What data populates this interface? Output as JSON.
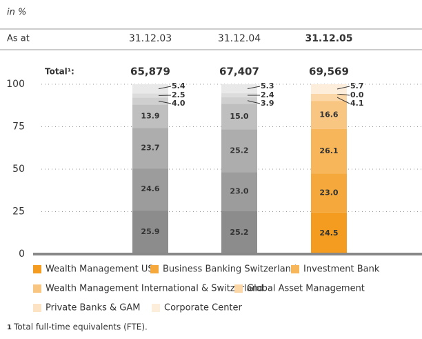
{
  "unit_label": "in %",
  "date_label": "As at",
  "chart_data": {
    "type": "stacked_bar",
    "categories": [
      "31.12.03",
      "31.12.04",
      "31.12.05"
    ],
    "highlight_category": 2,
    "total_label": "Total¹:",
    "totals": {
      "values": [
        65879,
        67407,
        69569
      ],
      "value_labels": [
        "65,879",
        "67,407",
        "69,569"
      ]
    },
    "ylim": [
      0,
      100
    ],
    "yticks": [
      0,
      25,
      50,
      75,
      100
    ],
    "grid": true,
    "series": [
      {
        "name": "Wealth Management US",
        "color": "#f39c1f",
        "gray": "#8c8c8c",
        "values": [
          25.9,
          25.2,
          24.5
        ],
        "value_labels": [
          "25.9",
          "25.2",
          "24.5"
        ]
      },
      {
        "name": "Business Banking Switzerland",
        "color": "#f5a83c",
        "gray": "#9c9c9c",
        "values": [
          24.6,
          23.0,
          23.0
        ],
        "value_labels": [
          "24.6",
          "23.0",
          "23.0"
        ]
      },
      {
        "name": "Investment Bank",
        "color": "#f7b65a",
        "gray": "#adadad",
        "values": [
          23.7,
          25.2,
          26.1
        ],
        "value_labels": [
          "23.7",
          "25.2",
          "26.1"
        ]
      },
      {
        "name": "Wealth Management International & Switzerland",
        "color": "#f9c682",
        "gray": "#bfbfbf",
        "values": [
          13.9,
          15.0,
          16.6
        ],
        "value_labels": [
          "13.9",
          "15.0",
          "16.6"
        ]
      },
      {
        "name": "Global Asset Management",
        "color": "#fbd6a6",
        "gray": "#cfcfcf",
        "values": [
          4.0,
          3.9,
          4.1
        ],
        "value_labels": [
          "4.0",
          "3.9",
          "4.1"
        ]
      },
      {
        "name": "Private Banks & GAM",
        "color": "#fce3c3",
        "gray": "#dcdcdc",
        "values": [
          2.5,
          2.4,
          0.0
        ],
        "value_labels": [
          "2.5",
          "2.4",
          "0.0"
        ]
      },
      {
        "name": "Corporate Center",
        "color": "#fdeedc",
        "gray": "#e9e9e9",
        "values": [
          5.4,
          5.3,
          5.7
        ],
        "value_labels": [
          "5.4",
          "5.3",
          "5.7"
        ]
      }
    ]
  },
  "footnote": {
    "marker": "1",
    "text": "Total full-time equivalents (FTE)."
  }
}
